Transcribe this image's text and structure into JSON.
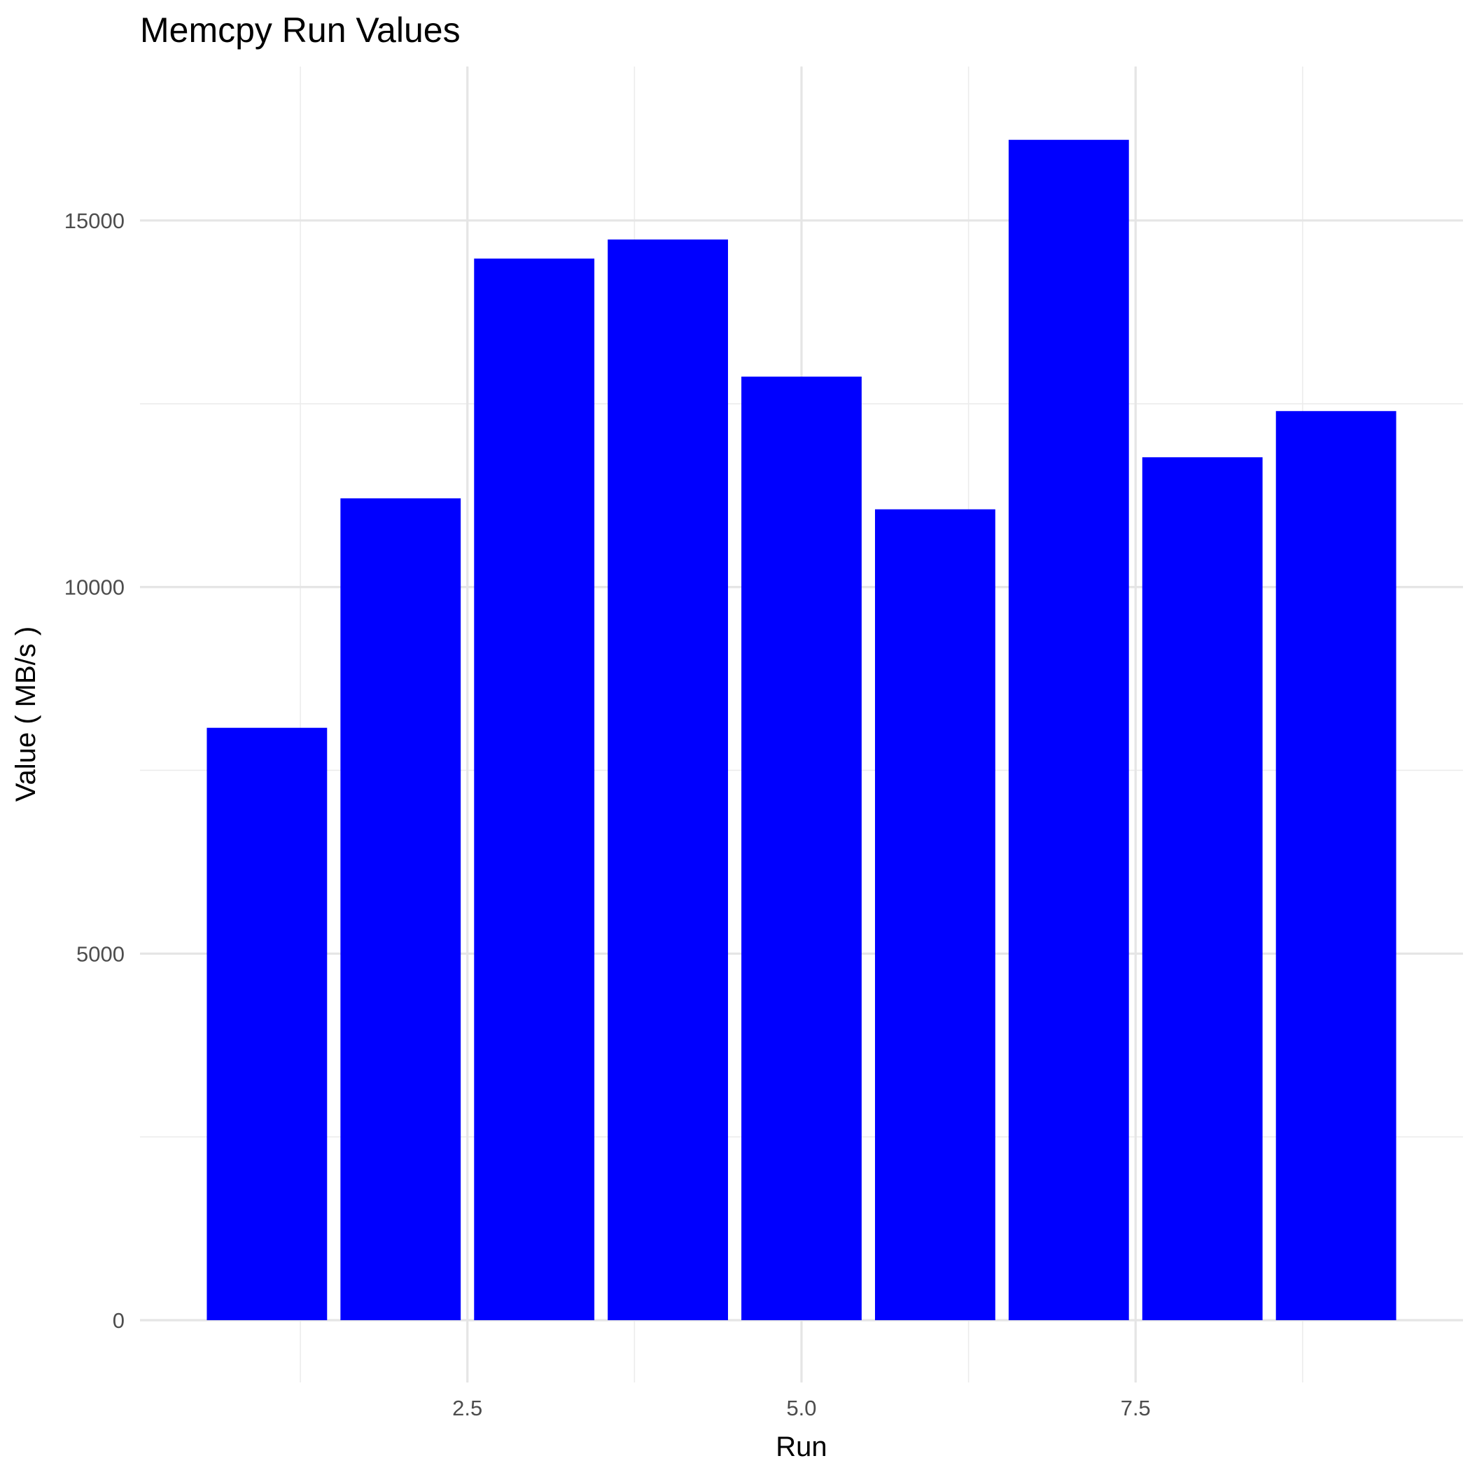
{
  "colors": {
    "bar": "#0000ff",
    "background": "#ffffff",
    "grid": "#e5e5e5"
  },
  "chart_data": {
    "type": "bar",
    "title": "Memcpy Run Values",
    "xlabel": "Run",
    "ylabel": "Value ( MB/s )",
    "x": [
      1,
      2,
      3,
      4,
      5,
      6,
      7,
      8,
      9
    ],
    "values": [
      8080,
      11210,
      14480,
      14740,
      12870,
      11060,
      16100,
      11770,
      12400
    ],
    "xlim": [
      0.05,
      9.95
    ],
    "ylim": [
      -850,
      17100
    ],
    "x_ticks": [
      2.5,
      5.0,
      7.5
    ],
    "x_tick_labels": [
      "2.5",
      "5.0",
      "7.5"
    ],
    "y_ticks": [
      0,
      5000,
      10000,
      15000
    ],
    "y_tick_labels": [
      "0",
      "5000",
      "10000",
      "15000"
    ],
    "bar_width": 0.9,
    "grid": true,
    "legend": "none"
  }
}
